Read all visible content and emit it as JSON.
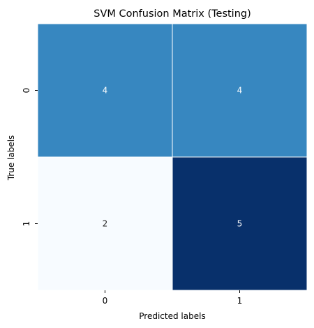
{
  "chart_data": {
    "type": "heatmap",
    "title": "SVM Confusion Matrix (Testing)",
    "xlabel": "Predicted labels",
    "ylabel": "True labels",
    "x_categories": [
      "0",
      "1"
    ],
    "y_categories": [
      "0",
      "1"
    ],
    "values": [
      [
        4,
        4
      ],
      [
        2,
        5
      ]
    ],
    "annotations": [
      [
        "4",
        "4"
      ],
      [
        "2",
        "5"
      ]
    ],
    "colormap": "Blues",
    "vmin": 2,
    "vmax": 5,
    "colorbar": false,
    "colors": {
      "low": "#f7fbff",
      "mid": "#3787c0",
      "high": "#08306b",
      "grid_line": "#ffffff",
      "text_dark_cell": "#ffffff",
      "text_light_cell": "#262626"
    }
  }
}
